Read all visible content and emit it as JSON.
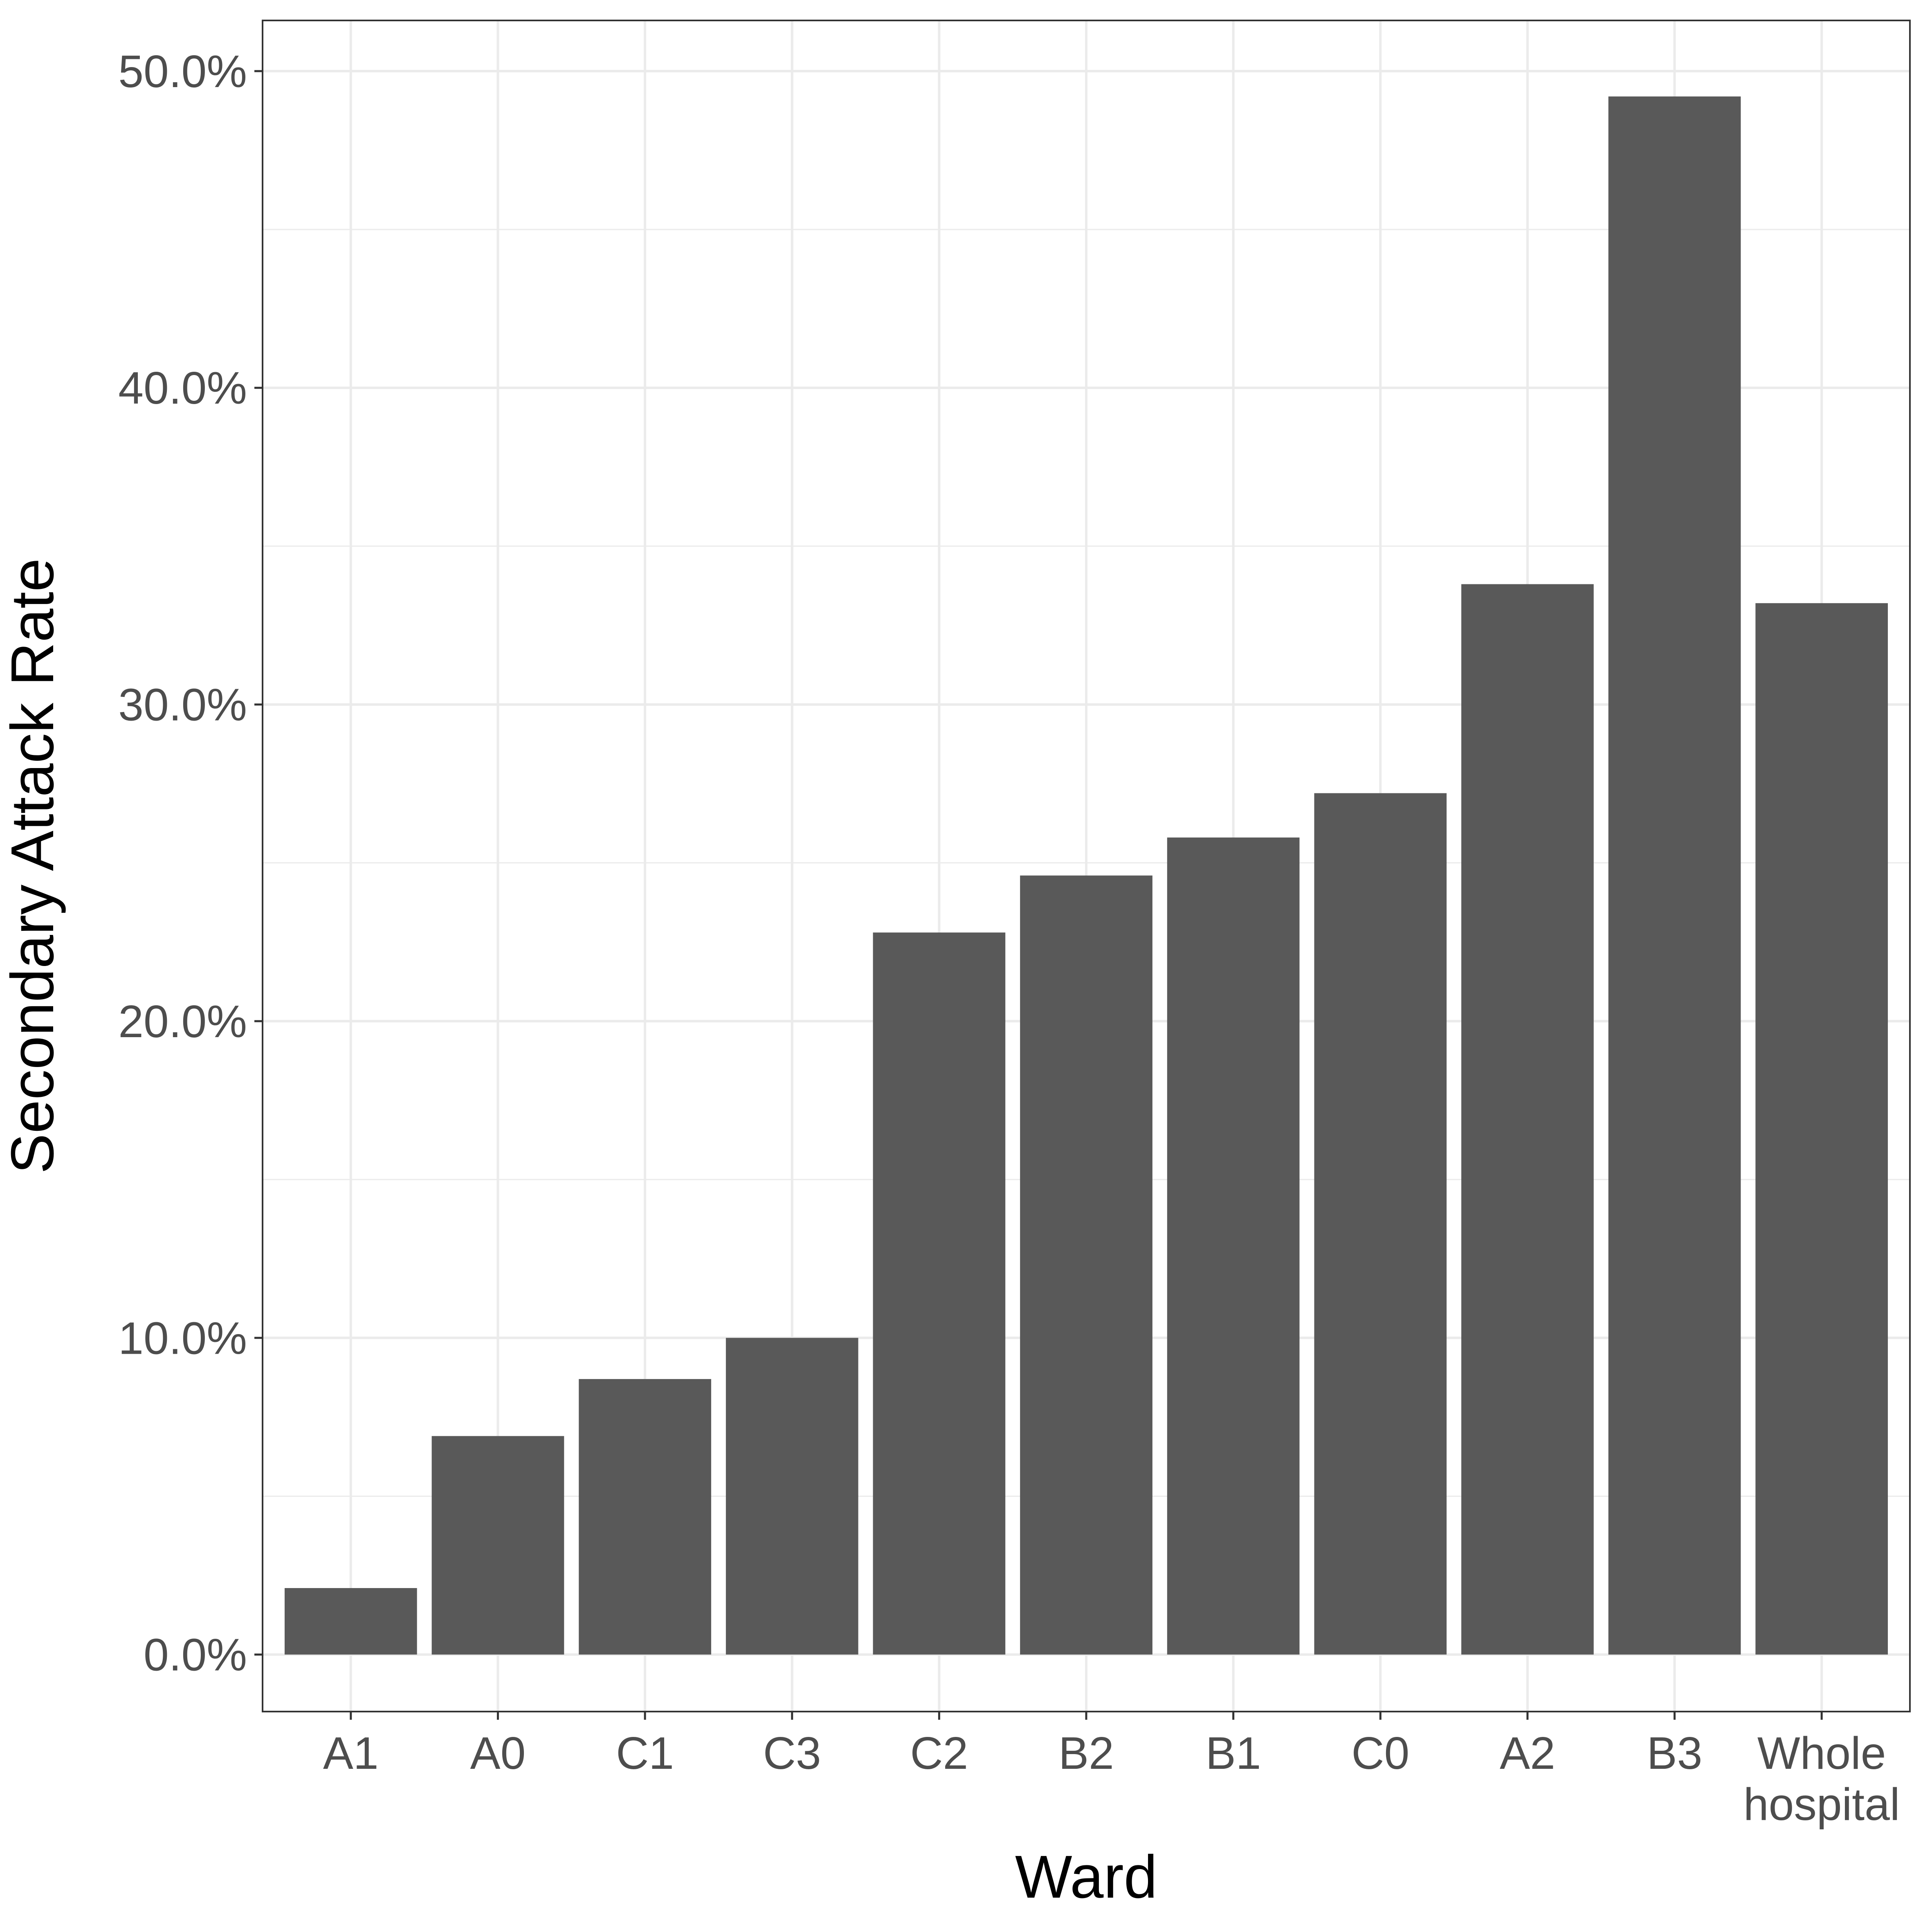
{
  "chart_data": {
    "type": "bar",
    "title": "",
    "xlabel": "Ward",
    "ylabel": "Secondary Attack Rate",
    "categories": [
      "A1",
      "A0",
      "C1",
      "C3",
      "C2",
      "B2",
      "B1",
      "C0",
      "A2",
      "B3",
      "Whole hospital"
    ],
    "category_label_lines": [
      [
        "A1"
      ],
      [
        "A0"
      ],
      [
        "C1"
      ],
      [
        "C3"
      ],
      [
        "C2"
      ],
      [
        "B2"
      ],
      [
        "B1"
      ],
      [
        "C0"
      ],
      [
        "A2"
      ],
      [
        "B3"
      ],
      [
        "Whole",
        "hospital"
      ]
    ],
    "values": [
      2.1,
      6.9,
      8.7,
      10.0,
      22.8,
      24.6,
      25.8,
      27.2,
      33.8,
      49.2,
      33.2
    ],
    "value_unit": "percent",
    "ylim": [
      -1.8,
      51.6
    ],
    "yticks": [
      0,
      10,
      20,
      30,
      40,
      50
    ],
    "ytick_labels": [
      "0.0%",
      "10.0%",
      "20.0%",
      "30.0%",
      "40.0%",
      "50.0%"
    ],
    "grid": true,
    "legend": "none",
    "colors": {
      "bar": "#595959",
      "grid": "#ebebeb",
      "panel_border": "#333333",
      "tick_label": "#4d4d4d",
      "axis_title": "#000000",
      "background": "#ffffff"
    }
  }
}
